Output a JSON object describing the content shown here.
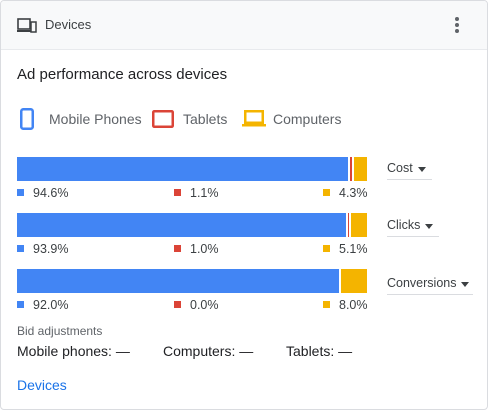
{
  "header": {
    "title": "Devices",
    "icon": "devices-icon",
    "menu_icon": "more-vert-icon"
  },
  "subtitle": "Ad performance across devices",
  "legend": [
    {
      "label": "Mobile Phones",
      "color": "#4285f4",
      "icon": "mobile-phone-icon"
    },
    {
      "label": "Tablets",
      "color": "#db4437",
      "icon": "tablet-icon"
    },
    {
      "label": "Computers",
      "color": "#f4b400",
      "icon": "computer-icon"
    }
  ],
  "colors": {
    "mobile": "#4285f4",
    "tablet": "#db4437",
    "computer": "#f4b400",
    "link": "#1a73e8"
  },
  "metrics": [
    {
      "label": "Cost",
      "mobile": 94.6,
      "tablet": 1.1,
      "computer": 4.3,
      "mobile_text": "94.6%",
      "tablet_text": "1.1%",
      "computer_text": "4.3%"
    },
    {
      "label": "Clicks",
      "mobile": 93.9,
      "tablet": 1.0,
      "computer": 5.1,
      "mobile_text": "93.9%",
      "tablet_text": "1.0%",
      "computer_text": "5.1%"
    },
    {
      "label": "Conversions",
      "mobile": 92.0,
      "tablet": 0.0,
      "computer": 8.0,
      "mobile_text": "92.0%",
      "tablet_text": "0.0%",
      "computer_text": "8.0%"
    }
  ],
  "bid_adjustments": {
    "title": "Bid adjustments",
    "mobile": "Mobile phones: —",
    "computers": "Computers: —",
    "tablets": "Tablets: —"
  },
  "footer_link": "Devices"
}
